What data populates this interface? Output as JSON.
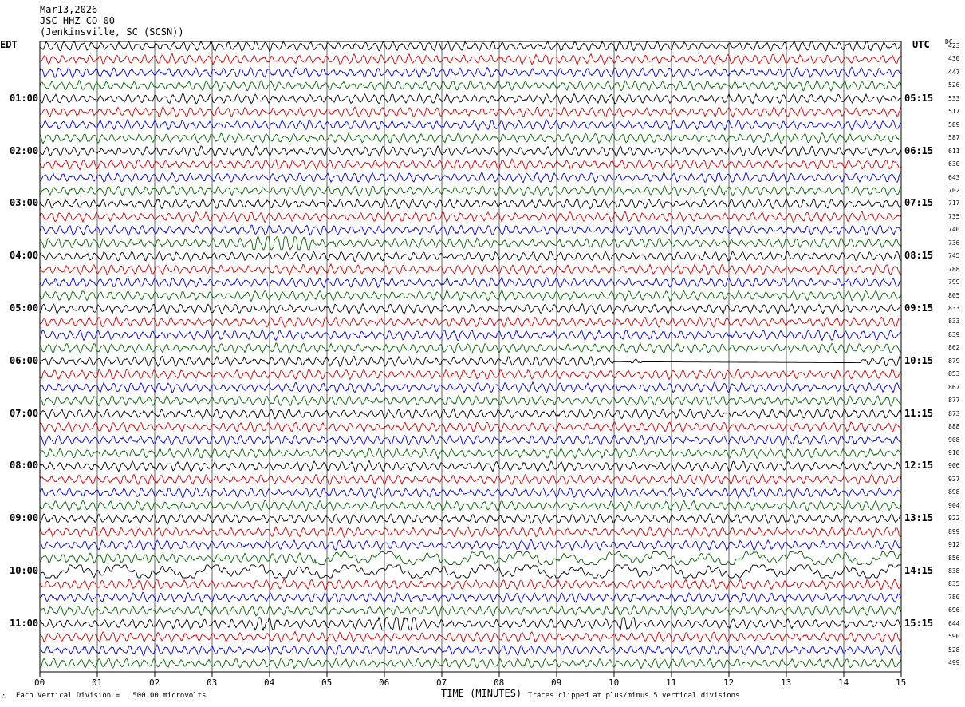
{
  "header": {
    "date": "Mar13,2026",
    "station": "JSC HHZ CO 00",
    "location": "(Jenkinsville, SC (SCSN))"
  },
  "left_timezone": "EDT",
  "right_timezone": "UTC",
  "dc_label": "DC",
  "footer": {
    "scale_note": "Each Vertical Division =   500.00 microvolts",
    "xlabel": "TIME (MINUTES)",
    "clip_note": "Traces clipped at plus/minus 5 vertical divisions"
  },
  "colors": {
    "trace_cycle": [
      "#000000",
      "#cc0000",
      "#0000cc",
      "#006600"
    ],
    "grid": "#000000"
  },
  "chart_data": {
    "type": "line",
    "xlabel": "TIME (MINUTES)",
    "x_ticks": [
      "00",
      "01",
      "02",
      "03",
      "04",
      "05",
      "06",
      "07",
      "08",
      "09",
      "10",
      "11",
      "12",
      "13",
      "14",
      "15"
    ],
    "xlim": [
      0,
      15
    ],
    "left_hour_labels": [
      "01:00",
      "02:00",
      "03:00",
      "04:00",
      "05:00",
      "06:00",
      "07:00",
      "08:00",
      "09:00",
      "10:00",
      "11:00"
    ],
    "right_hour_labels": [
      "05:15",
      "06:15",
      "07:15",
      "08:15",
      "09:15",
      "10:15",
      "11:15",
      "12:15",
      "13:15",
      "14:15",
      "15:15"
    ],
    "dc_offsets": [
      423,
      430,
      447,
      526,
      533,
      517,
      589,
      587,
      611,
      630,
      643,
      702,
      717,
      735,
      740,
      736,
      745,
      788,
      799,
      805,
      833,
      833,
      839,
      862,
      879,
      853,
      867,
      877,
      873,
      888,
      908,
      910,
      906,
      927,
      898,
      904,
      922,
      899,
      912,
      856,
      838,
      835,
      780,
      696,
      644,
      590,
      528,
      499
    ],
    "events": [
      {
        "trace": 15,
        "minute_start": 3.7,
        "minute_end": 4.7,
        "type": "burst"
      },
      {
        "trace": 24,
        "minute_start": 10.0,
        "minute_end": 14.3,
        "type": "dropout"
      },
      {
        "trace": 39,
        "minute_start": 4.8,
        "minute_end": 15.0,
        "type": "long-period"
      },
      {
        "trace": 40,
        "minute_start": 0.0,
        "minute_end": 15.0,
        "type": "long-period"
      },
      {
        "trace": 44,
        "minute_start": 3.7,
        "minute_end": 4.2,
        "type": "burst"
      },
      {
        "trace": 44,
        "minute_start": 5.9,
        "minute_end": 6.6,
        "type": "burst"
      },
      {
        "trace": 44,
        "minute_start": 10.1,
        "minute_end": 10.4,
        "type": "burst"
      }
    ],
    "traces_count": 48,
    "grid": true
  }
}
